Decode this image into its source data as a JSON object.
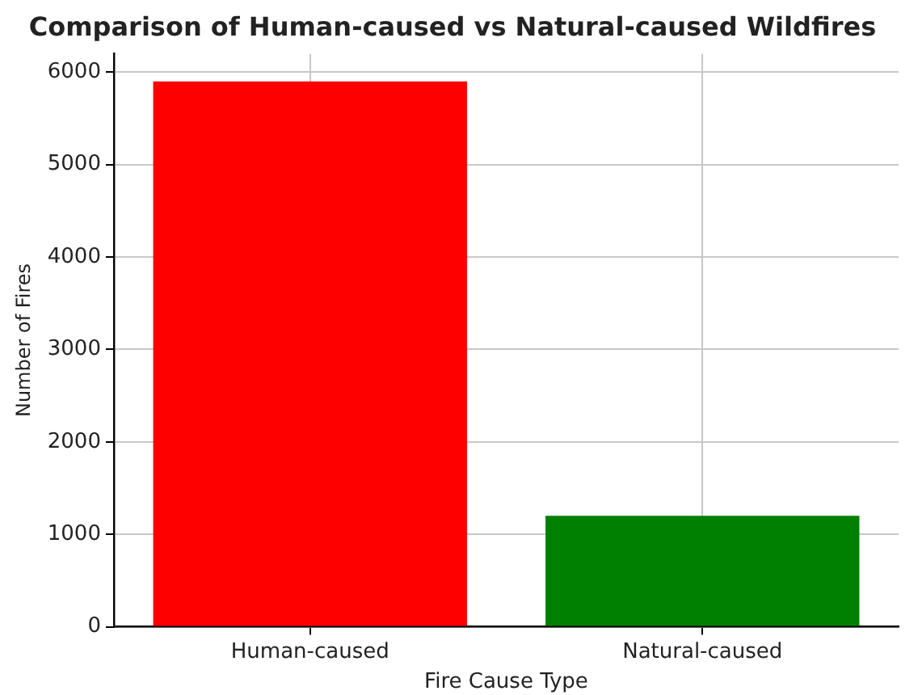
{
  "chart_data": {
    "type": "bar",
    "title": "Comparison of Human-caused vs Natural-caused Wildfires",
    "xlabel": "Fire Cause Type",
    "ylabel": "Number of Fires",
    "categories": [
      "Human-caused",
      "Natural-caused"
    ],
    "values": [
      5900,
      1200
    ],
    "colors": [
      "#ff0000",
      "#008000"
    ],
    "ylim": [
      0,
      6200
    ],
    "yticks": [
      0,
      1000,
      2000,
      3000,
      4000,
      5000,
      6000
    ],
    "grid": true,
    "legend": false
  }
}
